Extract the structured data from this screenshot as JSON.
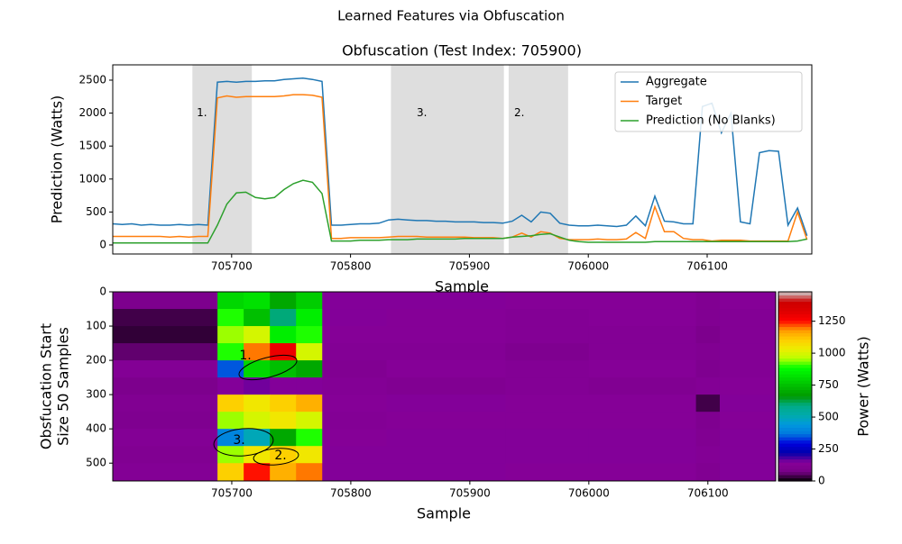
{
  "title": "Learned Features via Obfuscation",
  "chart_data": [
    {
      "type": "line",
      "title": "Obfuscation (Test Index: 705900)",
      "xlabel": "Sample",
      "ylabel": "Prediction (Watts)",
      "xlim": [
        705600,
        706188
      ],
      "ylim": [
        -137,
        2732
      ],
      "xticks": [
        705700,
        705800,
        705900,
        706000,
        706100
      ],
      "yticks": [
        0,
        500,
        1000,
        1500,
        2000,
        2500
      ],
      "legend": "upper right",
      "regions": [
        {
          "start": 705667,
          "end": 705717,
          "label": "1.",
          "label_x": 705675,
          "label_y": 2000
        },
        {
          "start": 705834,
          "end": 705929,
          "label": "3.",
          "label_x": 705860,
          "label_y": 2000
        },
        {
          "start": 705933,
          "end": 705983,
          "label": "2.",
          "label_x": 705942,
          "label_y": 2000
        }
      ],
      "x": [
        705600,
        705608,
        705616,
        705624,
        705632,
        705640,
        705648,
        705656,
        705664,
        705672,
        705680,
        705688,
        705696,
        705704,
        705712,
        705720,
        705728,
        705736,
        705744,
        705752,
        705760,
        705768,
        705776,
        705784,
        705792,
        705800,
        705808,
        705816,
        705824,
        705832,
        705840,
        705848,
        705856,
        705864,
        705872,
        705880,
        705888,
        705896,
        705904,
        705912,
        705920,
        705928,
        705936,
        705944,
        705952,
        705960,
        705968,
        705976,
        705984,
        705992,
        706000,
        706008,
        706016,
        706024,
        706032,
        706040,
        706048,
        706056,
        706064,
        706072,
        706080,
        706088,
        706096,
        706104,
        706112,
        706120,
        706128,
        706136,
        706144,
        706152,
        706160,
        706168,
        706176,
        706184
      ],
      "series": [
        {
          "name": "Aggregate",
          "color": "#1f77b4",
          "values": [
            320,
            310,
            320,
            300,
            310,
            300,
            300,
            310,
            300,
            310,
            300,
            2470,
            2480,
            2470,
            2480,
            2480,
            2490,
            2490,
            2510,
            2520,
            2530,
            2510,
            2480,
            300,
            300,
            310,
            320,
            320,
            330,
            380,
            390,
            380,
            370,
            370,
            360,
            360,
            350,
            350,
            350,
            340,
            340,
            330,
            360,
            450,
            350,
            500,
            480,
            330,
            300,
            290,
            290,
            300,
            290,
            280,
            300,
            440,
            290,
            740,
            360,
            350,
            320,
            320,
            2100,
            2150,
            1700,
            2000,
            350,
            320,
            1400,
            1430,
            1420,
            300,
            560,
            140
          ]
        },
        {
          "name": "Target",
          "color": "#ff7f0e",
          "values": [
            130,
            130,
            130,
            130,
            130,
            130,
            120,
            130,
            120,
            130,
            130,
            2230,
            2260,
            2240,
            2250,
            2250,
            2250,
            2250,
            2260,
            2280,
            2280,
            2270,
            2240,
            100,
            100,
            110,
            110,
            110,
            110,
            120,
            130,
            130,
            130,
            120,
            120,
            120,
            120,
            120,
            110,
            110,
            110,
            100,
            120,
            180,
            120,
            200,
            180,
            100,
            80,
            80,
            80,
            90,
            80,
            80,
            90,
            190,
            100,
            580,
            200,
            200,
            100,
            80,
            80,
            60,
            70,
            70,
            70,
            60,
            60,
            60,
            60,
            60,
            500,
            80
          ]
        },
        {
          "name": "Prediction (No Blanks)",
          "color": "#2ca02c",
          "values": [
            30,
            30,
            30,
            30,
            30,
            30,
            30,
            30,
            30,
            30,
            30,
            300,
            620,
            790,
            800,
            720,
            700,
            720,
            840,
            930,
            980,
            950,
            780,
            60,
            60,
            60,
            70,
            70,
            70,
            80,
            80,
            80,
            90,
            90,
            90,
            90,
            90,
            100,
            100,
            100,
            100,
            100,
            120,
            130,
            140,
            160,
            170,
            120,
            70,
            50,
            40,
            40,
            40,
            40,
            40,
            40,
            40,
            50,
            50,
            50,
            50,
            50,
            50,
            50,
            50,
            50,
            50,
            50,
            50,
            50,
            50,
            50,
            60,
            90
          ]
        }
      ]
    },
    {
      "type": "heatmap",
      "xlabel": "Sample",
      "ylabel": [
        "Obsfucation Start",
        "Size 50 Samples"
      ],
      "xlim": [
        705600,
        706157
      ],
      "ylim": [
        0,
        552
      ],
      "xticks": [
        705700,
        705800,
        705900,
        706000,
        706100
      ],
      "yticks": [
        0,
        100,
        200,
        300,
        400,
        500
      ],
      "colormap": "nipy_spectral",
      "colorbar_label": "Power (Watts)",
      "zlim": [
        0,
        1480
      ],
      "zticks": [
        0,
        250,
        500,
        750,
        1000,
        1250
      ],
      "annotations": [
        "1.",
        "3.",
        "2."
      ],
      "x_edges": [
        705600,
        705688,
        705710,
        705732,
        705754,
        705776,
        705830,
        705930,
        706000,
        706090,
        706110,
        706157
      ],
      "y_edges": [
        0,
        50,
        100,
        150,
        200,
        250,
        300,
        350,
        400,
        450,
        500,
        552
      ],
      "z": [
        [
          100,
          800,
          820,
          700,
          780,
          150,
          150,
          140,
          140,
          120,
          140
        ],
        [
          40,
          900,
          750,
          600,
          850,
          150,
          140,
          130,
          140,
          120,
          130
        ],
        [
          30,
          950,
          1000,
          850,
          900,
          140,
          140,
          130,
          130,
          100,
          130
        ],
        [
          60,
          900,
          1200,
          1300,
          1000,
          130,
          130,
          110,
          130,
          120,
          130
        ],
        [
          130,
          350,
          800,
          750,
          700,
          120,
          140,
          130,
          140,
          110,
          130
        ],
        [
          100,
          150,
          160,
          150,
          150,
          130,
          120,
          130,
          120,
          130,
          140
        ],
        [
          120,
          1100,
          1050,
          1100,
          1150,
          140,
          150,
          140,
          140,
          40,
          150
        ],
        [
          110,
          950,
          1000,
          1050,
          1000,
          130,
          140,
          140,
          140,
          110,
          140
        ],
        [
          130,
          400,
          500,
          700,
          900,
          140,
          150,
          150,
          150,
          120,
          150
        ],
        [
          120,
          950,
          1050,
          1100,
          1050,
          150,
          150,
          150,
          150,
          130,
          150
        ],
        [
          130,
          1100,
          1250,
          1150,
          1200,
          150,
          150,
          140,
          140,
          120,
          150
        ]
      ]
    }
  ]
}
